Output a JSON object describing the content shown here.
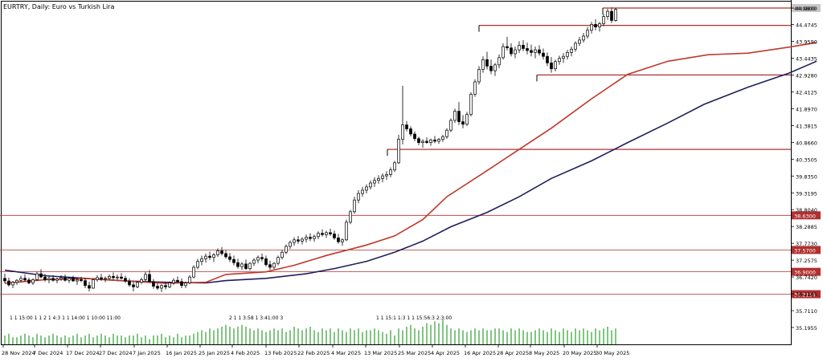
{
  "chart_data": {
    "type": "candlestick",
    "title": "EURTRY, Daily:  Euro vs Turkish Lira",
    "timeframe": "Daily",
    "x_labels": [
      "28 Nov 2024",
      "7 Dec 2024",
      "17 Dec 2024",
      "27 Dec 2024",
      "7 Jan 2025",
      "16 Jan 2025",
      "25 Jan 2025",
      "4 Feb 2025",
      "13 Feb 2025",
      "22 Feb 2025",
      "4 Mar 2025",
      "13 Mar 2025",
      "25 Mar 2025",
      "4 Apr 2025",
      "16 Apr 2025",
      "28 Apr 2025",
      "8 May 2025",
      "20 May 2025",
      "30 May 2025"
    ],
    "y_ticks": [
      "44.9800",
      "44.4745",
      "43.9590",
      "43.4435",
      "42.9280",
      "42.4125",
      "41.8970",
      "41.3815",
      "40.8660",
      "40.3505",
      "39.8350",
      "39.3195",
      "38.8040",
      "38.2885",
      "37.7730",
      "37.2575",
      "36.7420",
      "36.2265",
      "35.7110",
      "35.1955"
    ],
    "ylim": [
      34.9,
      45.03
    ],
    "price_label": "44.9800",
    "level_labels": [
      "38.6300",
      "37.5700",
      "36.9000",
      "36.2154"
    ],
    "horizontal_levels": [
      44.98,
      44.45,
      42.93,
      40.65
    ],
    "hist_label": "1 1 15:00 1 1 2 1 4:3 1 1 14:00 1 10:00 11:00",
    "hist_label2": "2 1 1 3:58 1 3:41:00 3",
    "hist_label3": "1 1 15:1 1:3 1 1 15:56:3 2:3:00",
    "series": [
      {
        "name": "",
        "color": "#1f1f5c",
        "values": [
          [
            0,
            36.95
          ],
          [
            10,
            36.78
          ],
          [
            20,
            36.7
          ],
          [
            30,
            36.62
          ],
          [
            40,
            36.58
          ],
          [
            50,
            36.56
          ],
          [
            55,
            36.63
          ],
          [
            65,
            36.7
          ],
          [
            75,
            36.84
          ],
          [
            82,
            37.0
          ],
          [
            90,
            37.22
          ],
          [
            97,
            37.5
          ],
          [
            104,
            37.84
          ],
          [
            111,
            38.28
          ],
          [
            120,
            38.72
          ],
          [
            128,
            39.2
          ],
          [
            136,
            39.76
          ],
          [
            146,
            40.3
          ],
          [
            155,
            40.86
          ],
          [
            165,
            41.46
          ],
          [
            174,
            42.03
          ],
          [
            185,
            42.56
          ],
          [
            195,
            42.98
          ],
          [
            202,
            43.35
          ]
        ]
      },
      {
        "name": "",
        "color": "#c0392b",
        "values": [
          [
            0,
            36.55
          ],
          [
            10,
            36.66
          ],
          [
            20,
            36.7
          ],
          [
            30,
            36.62
          ],
          [
            40,
            36.55
          ],
          [
            50,
            36.58
          ],
          [
            55,
            36.82
          ],
          [
            65,
            36.9
          ],
          [
            72,
            37.1
          ],
          [
            80,
            37.4
          ],
          [
            90,
            37.72
          ],
          [
            97,
            38.0
          ],
          [
            104,
            38.5
          ],
          [
            110,
            39.2
          ],
          [
            120,
            40.0
          ],
          [
            128,
            40.65
          ],
          [
            136,
            41.3
          ],
          [
            146,
            42.2
          ],
          [
            155,
            42.95
          ],
          [
            165,
            43.35
          ],
          [
            175,
            43.55
          ],
          [
            185,
            43.6
          ],
          [
            195,
            43.78
          ],
          [
            202,
            43.92
          ]
        ]
      }
    ],
    "volumes": [
      5,
      6,
      4,
      4,
      5,
      6,
      5,
      4,
      6,
      5,
      4,
      5,
      6,
      5,
      4,
      5,
      4,
      5,
      6,
      4,
      5,
      6,
      4,
      5,
      6,
      5,
      4,
      6,
      5,
      5,
      4,
      5,
      5,
      6,
      4,
      5,
      3,
      5,
      5,
      6,
      4,
      5,
      4,
      6,
      4,
      5,
      5,
      6,
      7,
      8,
      7,
      9,
      8,
      9,
      10,
      11,
      10,
      9,
      10,
      11,
      10,
      9,
      8,
      9,
      8,
      7,
      8,
      9,
      8,
      9,
      7,
      8,
      10,
      9,
      8,
      9,
      10,
      8,
      7,
      9,
      8,
      9,
      7,
      9,
      8,
      7,
      9,
      8,
      9,
      7,
      8,
      8,
      9,
      8,
      7,
      6,
      8,
      5,
      9,
      8,
      10,
      11,
      9,
      8,
      10,
      12,
      11,
      13,
      12,
      14,
      11,
      9,
      8,
      9,
      8,
      7,
      8,
      9,
      8,
      9,
      8,
      8,
      9,
      9,
      8,
      7,
      9,
      8,
      9,
      8,
      7,
      7,
      8,
      9,
      8,
      7,
      9,
      8,
      7,
      9,
      8,
      7,
      9,
      8,
      9,
      8,
      7,
      9,
      8,
      9,
      10,
      8,
      9,
      8,
      7,
      8,
      9,
      8,
      9,
      10,
      8,
      9,
      9,
      10,
      13,
      15,
      14,
      12,
      11,
      10,
      9,
      8,
      9,
      10,
      8,
      9,
      8,
      10,
      9,
      10,
      8,
      9,
      8,
      9,
      8,
      9,
      8,
      7,
      9,
      8,
      8,
      8,
      9,
      8,
      9,
      8,
      9,
      9,
      10,
      5
    ],
    "candles": [
      [
        36.7,
        36.85,
        36.55,
        36.62
      ],
      [
        36.62,
        36.72,
        36.45,
        36.5
      ],
      [
        36.5,
        36.62,
        36.4,
        36.58
      ],
      [
        36.58,
        36.68,
        36.5,
        36.64
      ],
      [
        36.64,
        36.78,
        36.58,
        36.7
      ],
      [
        36.7,
        36.82,
        36.6,
        36.65
      ],
      [
        36.65,
        36.72,
        36.52,
        36.56
      ],
      [
        36.56,
        36.7,
        36.5,
        36.66
      ],
      [
        36.66,
        36.9,
        36.62,
        36.84
      ],
      [
        36.84,
        36.98,
        36.7,
        36.74
      ],
      [
        36.74,
        36.84,
        36.6,
        36.66
      ],
      [
        36.66,
        36.76,
        36.55,
        36.7
      ],
      [
        36.7,
        36.8,
        36.6,
        36.64
      ],
      [
        36.64,
        36.72,
        36.55,
        36.68
      ],
      [
        36.68,
        36.8,
        36.62,
        36.72
      ],
      [
        36.72,
        36.82,
        36.6,
        36.64
      ],
      [
        36.64,
        36.74,
        36.56,
        36.7
      ],
      [
        36.7,
        36.78,
        36.6,
        36.62
      ],
      [
        36.62,
        36.72,
        36.5,
        36.66
      ],
      [
        36.66,
        36.75,
        36.58,
        36.63
      ],
      [
        36.63,
        36.72,
        36.4,
        36.48
      ],
      [
        36.48,
        36.6,
        36.3,
        36.4
      ],
      [
        36.4,
        36.7,
        36.38,
        36.66
      ],
      [
        36.66,
        36.8,
        36.6,
        36.72
      ],
      [
        36.72,
        36.84,
        36.62,
        36.68
      ],
      [
        36.68,
        36.76,
        36.58,
        36.7
      ],
      [
        36.7,
        36.82,
        36.64,
        36.76
      ],
      [
        36.76,
        36.88,
        36.66,
        36.72
      ],
      [
        36.72,
        36.82,
        36.64,
        36.74
      ],
      [
        36.74,
        36.86,
        36.66,
        36.7
      ],
      [
        36.7,
        36.78,
        36.56,
        36.62
      ],
      [
        36.62,
        36.7,
        36.44,
        36.5
      ],
      [
        36.5,
        36.6,
        36.3,
        36.44
      ],
      [
        36.44,
        36.62,
        36.4,
        36.58
      ],
      [
        36.58,
        36.72,
        36.52,
        36.66
      ],
      [
        36.66,
        36.9,
        36.62,
        36.82
      ],
      [
        36.82,
        36.96,
        36.56,
        36.6
      ],
      [
        36.6,
        36.68,
        36.38,
        36.46
      ],
      [
        36.46,
        36.56,
        36.34,
        36.4
      ],
      [
        36.4,
        36.52,
        36.28,
        36.48
      ],
      [
        36.48,
        36.58,
        36.36,
        36.44
      ],
      [
        36.44,
        36.6,
        36.4,
        36.56
      ],
      [
        36.56,
        36.7,
        36.5,
        36.64
      ],
      [
        36.64,
        36.76,
        36.56,
        36.6
      ],
      [
        36.6,
        36.7,
        36.4,
        36.48
      ],
      [
        36.48,
        36.6,
        36.4,
        36.56
      ],
      [
        36.56,
        36.8,
        36.52,
        36.74
      ],
      [
        36.74,
        37.1,
        36.7,
        37.04
      ],
      [
        37.04,
        37.3,
        36.98,
        37.22
      ],
      [
        37.22,
        37.4,
        37.1,
        37.3
      ],
      [
        37.3,
        37.46,
        37.18,
        37.38
      ],
      [
        37.38,
        37.52,
        37.26,
        37.34
      ],
      [
        37.34,
        37.48,
        37.2,
        37.42
      ],
      [
        37.42,
        37.62,
        37.36,
        37.54
      ],
      [
        37.54,
        37.66,
        37.4,
        37.46
      ],
      [
        37.46,
        37.56,
        37.3,
        37.36
      ],
      [
        37.36,
        37.48,
        37.2,
        37.28
      ],
      [
        37.28,
        37.4,
        37.1,
        37.18
      ],
      [
        37.18,
        37.3,
        37.0,
        37.06
      ],
      [
        37.06,
        37.2,
        36.96,
        37.14
      ],
      [
        37.14,
        37.28,
        36.96,
        37.0
      ],
      [
        37.0,
        37.2,
        36.94,
        37.16
      ],
      [
        37.16,
        37.32,
        37.08,
        37.26
      ],
      [
        37.26,
        37.4,
        37.16,
        37.34
      ],
      [
        37.34,
        37.46,
        37.22,
        37.3
      ],
      [
        37.3,
        37.4,
        37.06,
        37.12
      ],
      [
        37.12,
        37.24,
        36.96,
        37.04
      ],
      [
        37.04,
        37.2,
        36.98,
        37.16
      ],
      [
        37.16,
        37.4,
        37.1,
        37.34
      ],
      [
        37.34,
        37.56,
        37.28,
        37.5
      ],
      [
        37.5,
        37.74,
        37.44,
        37.68
      ],
      [
        37.68,
        37.86,
        37.6,
        37.8
      ],
      [
        37.8,
        37.96,
        37.7,
        37.88
      ],
      [
        37.88,
        38.0,
        37.76,
        37.84
      ],
      [
        37.84,
        37.96,
        37.74,
        37.9
      ],
      [
        37.9,
        38.04,
        37.8,
        37.96
      ],
      [
        37.96,
        38.08,
        37.84,
        37.92
      ],
      [
        37.92,
        38.04,
        37.82,
        37.98
      ],
      [
        37.98,
        38.14,
        37.9,
        38.08
      ],
      [
        38.08,
        38.2,
        37.98,
        38.04
      ],
      [
        38.04,
        38.16,
        37.94,
        38.1
      ],
      [
        38.1,
        38.22,
        38.0,
        38.06
      ],
      [
        38.06,
        38.16,
        37.88,
        37.94
      ],
      [
        37.94,
        38.06,
        37.76,
        37.82
      ],
      [
        37.82,
        37.92,
        37.7,
        37.88
      ],
      [
        37.88,
        38.5,
        37.84,
        38.42
      ],
      [
        38.42,
        38.8,
        38.36,
        38.74
      ],
      [
        38.74,
        39.2,
        38.68,
        39.1
      ],
      [
        39.1,
        39.4,
        39.0,
        39.3
      ],
      [
        39.3,
        39.5,
        39.2,
        39.4
      ],
      [
        39.4,
        39.58,
        39.3,
        39.5
      ],
      [
        39.5,
        39.7,
        39.42,
        39.62
      ],
      [
        39.62,
        39.8,
        39.5,
        39.7
      ],
      [
        39.7,
        39.86,
        39.6,
        39.76
      ],
      [
        39.76,
        39.92,
        39.64,
        39.84
      ],
      [
        39.84,
        39.98,
        39.72,
        39.88
      ],
      [
        39.88,
        40.1,
        39.8,
        40.02
      ],
      [
        40.02,
        40.3,
        39.96,
        40.24
      ],
      [
        40.24,
        41.1,
        40.2,
        40.96
      ],
      [
        40.96,
        42.6,
        40.8,
        41.4
      ],
      [
        41.4,
        41.52,
        41.2,
        41.28
      ],
      [
        41.28,
        41.36,
        41.05,
        41.12
      ],
      [
        41.12,
        41.2,
        40.9,
        40.98
      ],
      [
        40.98,
        41.04,
        40.78,
        40.86
      ],
      [
        40.86,
        40.96,
        40.7,
        40.9
      ],
      [
        40.9,
        41.02,
        40.82,
        40.86
      ],
      [
        40.86,
        40.98,
        40.76,
        40.94
      ],
      [
        40.94,
        41.06,
        40.84,
        40.9
      ],
      [
        40.9,
        41.0,
        40.82,
        40.96
      ],
      [
        40.96,
        41.1,
        40.88,
        41.04
      ],
      [
        41.04,
        41.3,
        40.98,
        41.24
      ],
      [
        41.24,
        41.6,
        41.18,
        41.54
      ],
      [
        41.54,
        41.9,
        41.46,
        41.82
      ],
      [
        41.82,
        42.1,
        41.4,
        41.5
      ],
      [
        41.5,
        41.7,
        41.3,
        41.42
      ],
      [
        41.42,
        41.8,
        41.36,
        41.72
      ],
      [
        41.72,
        42.4,
        41.66,
        42.34
      ],
      [
        42.34,
        42.8,
        42.26,
        42.72
      ],
      [
        42.72,
        43.2,
        42.64,
        43.1
      ],
      [
        43.1,
        43.5,
        43.0,
        43.4
      ],
      [
        43.4,
        43.64,
        43.1,
        43.2
      ],
      [
        43.2,
        43.4,
        42.96,
        43.06
      ],
      [
        43.06,
        43.3,
        42.9,
        43.24
      ],
      [
        43.24,
        43.56,
        43.14,
        43.46
      ],
      [
        43.46,
        43.9,
        43.4,
        43.8
      ],
      [
        43.8,
        44.1,
        43.68,
        43.76
      ],
      [
        43.76,
        43.9,
        43.5,
        43.58
      ],
      [
        43.58,
        43.8,
        43.44,
        43.7
      ],
      [
        43.7,
        43.96,
        43.6,
        43.84
      ],
      [
        43.84,
        44.0,
        43.66,
        43.74
      ],
      [
        43.74,
        43.92,
        43.56,
        43.68
      ],
      [
        43.68,
        43.86,
        43.5,
        43.62
      ],
      [
        43.62,
        43.8,
        43.44,
        43.7
      ],
      [
        43.7,
        43.84,
        43.52,
        43.6
      ],
      [
        43.6,
        43.74,
        43.4,
        43.5
      ],
      [
        43.5,
        43.62,
        43.2,
        43.3
      ],
      [
        43.3,
        43.48,
        43.0,
        43.12
      ],
      [
        43.12,
        43.4,
        43.04,
        43.34
      ],
      [
        43.34,
        43.52,
        43.24,
        43.44
      ],
      [
        43.44,
        43.6,
        43.3,
        43.5
      ],
      [
        43.5,
        43.7,
        43.4,
        43.62
      ],
      [
        43.62,
        43.8,
        43.5,
        43.72
      ],
      [
        43.72,
        43.96,
        43.64,
        43.9
      ],
      [
        43.9,
        44.1,
        43.82,
        44.0
      ],
      [
        44.0,
        44.22,
        43.92,
        44.12
      ],
      [
        44.12,
        44.4,
        44.04,
        44.3
      ],
      [
        44.3,
        44.56,
        44.2,
        44.48
      ],
      [
        44.48,
        44.64,
        44.3,
        44.4
      ],
      [
        44.4,
        44.56,
        44.26,
        44.5
      ],
      [
        44.5,
        44.8,
        44.42,
        44.72
      ],
      [
        44.72,
        44.96,
        44.62,
        44.88
      ],
      [
        44.88,
        45.0,
        44.52,
        44.6
      ],
      [
        44.6,
        44.98,
        44.56,
        44.94
      ]
    ]
  }
}
